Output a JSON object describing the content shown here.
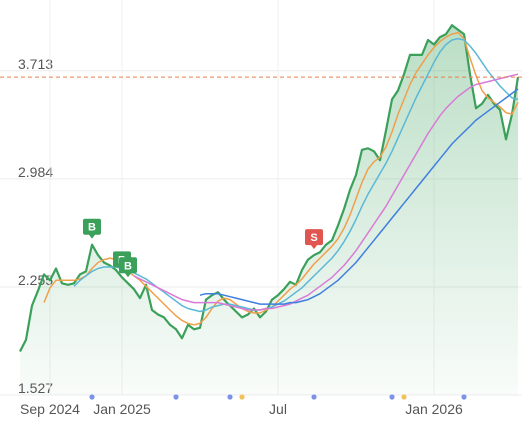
{
  "chart_data": {
    "type": "line",
    "categories": [
      null,
      null,
      null,
      null,
      null,
      "Sep 2024",
      null,
      null,
      null,
      null,
      null,
      null,
      null,
      null,
      null,
      null,
      null,
      "Jan 2025",
      null,
      null,
      null,
      null,
      null,
      null,
      null,
      null,
      null,
      null,
      null,
      null,
      null,
      null,
      null,
      null,
      null,
      null,
      null,
      null,
      null,
      null,
      null,
      null,
      null,
      "Jul",
      null,
      null,
      null,
      null,
      null,
      null,
      null,
      null,
      null,
      null,
      null,
      null,
      null,
      null,
      null,
      null,
      null,
      null,
      null,
      null,
      null,
      null,
      null,
      null,
      null,
      "Jan 2026",
      null,
      null,
      null,
      null,
      null,
      null,
      null,
      null,
      null,
      null,
      null,
      null,
      null,
      null
    ],
    "series": [
      {
        "color": "#3aa05a",
        "fill": true,
        "values": [
          1.82,
          1.9,
          2.13,
          2.23,
          2.34,
          2.3,
          2.38,
          2.28,
          2.27,
          2.28,
          2.34,
          2.36,
          2.54,
          2.47,
          2.42,
          2.4,
          2.37,
          2.32,
          2.28,
          2.24,
          2.18,
          2.27,
          2.1,
          2.07,
          2.05,
          2.0,
          1.97,
          1.91,
          2.0,
          1.97,
          1.98,
          2.17,
          2.2,
          2.22,
          2.17,
          2.13,
          2.09,
          2.05,
          2.07,
          2.11,
          2.05,
          2.09,
          2.17,
          2.2,
          2.24,
          2.29,
          2.27,
          2.37,
          2.44,
          2.47,
          2.49,
          2.54,
          2.57,
          2.67,
          2.78,
          2.91,
          3.01,
          3.18,
          3.19,
          3.17,
          3.11,
          3.31,
          3.52,
          3.58,
          3.69,
          3.82,
          3.82,
          3.82,
          3.92,
          3.89,
          3.94,
          3.96,
          4.02,
          3.99,
          3.96,
          3.69,
          3.46,
          3.49,
          3.55,
          3.49,
          3.45,
          3.25,
          3.42,
          3.67
        ]
      },
      {
        "color": "#f0a04b",
        "values": [
          null,
          null,
          null,
          null,
          2.15,
          2.25,
          2.3,
          2.3,
          2.3,
          2.3,
          2.31,
          2.33,
          2.38,
          2.42,
          2.44,
          2.45,
          2.44,
          2.4,
          2.36,
          2.33,
          2.3,
          2.26,
          2.22,
          2.18,
          2.14,
          2.1,
          2.06,
          2.03,
          2.01,
          2.0,
          2.01,
          2.05,
          2.11,
          2.16,
          2.18,
          2.17,
          2.14,
          2.11,
          2.09,
          2.08,
          2.08,
          2.1,
          2.12,
          2.16,
          2.2,
          2.24,
          2.27,
          2.31,
          2.36,
          2.41,
          2.45,
          2.49,
          2.53,
          2.58,
          2.65,
          2.74,
          2.85,
          2.96,
          3.05,
          3.1,
          3.13,
          3.2,
          3.3,
          3.42,
          3.52,
          3.62,
          3.7,
          3.76,
          3.82,
          3.87,
          3.91,
          3.94,
          3.96,
          3.97,
          3.93,
          3.8,
          3.68,
          3.58,
          3.53,
          3.5,
          3.47,
          3.43,
          3.42,
          3.5
        ]
      },
      {
        "color": "#5bb8d6",
        "values": [
          null,
          null,
          null,
          null,
          null,
          null,
          null,
          null,
          null,
          2.26,
          2.3,
          2.33,
          2.36,
          2.38,
          2.39,
          2.39,
          2.39,
          2.38,
          2.37,
          2.35,
          2.33,
          2.31,
          2.28,
          2.25,
          2.22,
          2.19,
          2.16,
          2.13,
          2.11,
          2.1,
          2.09,
          2.1,
          2.12,
          2.13,
          2.14,
          2.14,
          2.13,
          2.12,
          2.11,
          2.1,
          2.1,
          2.11,
          2.12,
          2.14,
          2.16,
          2.19,
          2.22,
          2.25,
          2.29,
          2.33,
          2.37,
          2.41,
          2.45,
          2.5,
          2.56,
          2.63,
          2.71,
          2.8,
          2.88,
          2.95,
          3.02,
          3.09,
          3.17,
          3.26,
          3.35,
          3.44,
          3.53,
          3.61,
          3.69,
          3.77,
          3.84,
          3.89,
          3.92,
          3.93,
          3.92,
          3.88,
          3.83,
          3.77,
          3.71,
          3.66,
          3.61,
          3.57,
          3.53,
          3.52
        ]
      },
      {
        "color": "#d97bd6",
        "values": [
          null,
          null,
          null,
          null,
          null,
          null,
          null,
          null,
          null,
          null,
          null,
          null,
          null,
          null,
          null,
          null,
          null,
          null,
          null,
          2.33,
          2.31,
          2.29,
          2.27,
          2.25,
          2.23,
          2.21,
          2.19,
          2.17,
          2.16,
          2.15,
          2.15,
          2.15,
          2.15,
          2.15,
          2.14,
          2.13,
          2.12,
          2.11,
          2.1,
          2.1,
          2.1,
          2.11,
          2.11,
          2.12,
          2.13,
          2.14,
          2.16,
          2.18,
          2.2,
          2.23,
          2.26,
          2.29,
          2.32,
          2.36,
          2.4,
          2.45,
          2.5,
          2.56,
          2.62,
          2.68,
          2.74,
          2.8,
          2.87,
          2.94,
          3.01,
          3.08,
          3.15,
          3.22,
          3.29,
          3.35,
          3.41,
          3.46,
          3.5,
          3.54,
          3.57,
          3.6,
          3.62,
          3.63,
          3.64,
          3.65,
          3.66,
          3.67,
          3.68,
          3.69
        ]
      },
      {
        "color": "#3f7fe0",
        "values": [
          null,
          null,
          null,
          null,
          null,
          null,
          null,
          null,
          null,
          null,
          null,
          null,
          null,
          null,
          null,
          null,
          null,
          null,
          null,
          null,
          null,
          null,
          null,
          null,
          null,
          null,
          null,
          null,
          null,
          null,
          2.2,
          2.21,
          2.21,
          2.21,
          2.2,
          2.19,
          2.18,
          2.17,
          2.16,
          2.15,
          2.14,
          2.14,
          2.14,
          2.14,
          2.14,
          2.15,
          2.15,
          2.16,
          2.17,
          2.19,
          2.21,
          2.24,
          2.27,
          2.3,
          2.34,
          2.38,
          2.42,
          2.47,
          2.52,
          2.57,
          2.62,
          2.67,
          2.72,
          2.77,
          2.82,
          2.87,
          2.92,
          2.97,
          3.02,
          3.07,
          3.12,
          3.17,
          3.22,
          3.26,
          3.3,
          3.34,
          3.38,
          3.41,
          3.44,
          3.47,
          3.5,
          3.53,
          3.56,
          3.59
        ]
      }
    ],
    "ylim": [
      1.527,
      4.19
    ],
    "yticks": [
      1.527,
      2.255,
      2.984,
      3.713
    ],
    "grid": true,
    "reference_line": {
      "value": 3.67,
      "color": "#e8804a"
    },
    "signals": [
      {
        "label": "B",
        "at": 12,
        "color": "#3aa05a"
      },
      {
        "label": "B",
        "at": 17,
        "color": "#3aa05a"
      },
      {
        "label": "B",
        "at": 18,
        "color": "#3aa05a"
      },
      {
        "label": "S",
        "at": 49,
        "color": "#e0554f"
      }
    ],
    "events": [
      {
        "at": 12,
        "color": "#7b93e6"
      },
      {
        "at": 26,
        "color": "#7b93e6"
      },
      {
        "at": 35,
        "color": "#7b93e6"
      },
      {
        "at": 37,
        "color": "#f2c25a"
      },
      {
        "at": 49,
        "color": "#7b93e6"
      },
      {
        "at": 62,
        "color": "#7b93e6"
      },
      {
        "at": 64,
        "color": "#f2c25a"
      },
      {
        "at": 74,
        "color": "#7b93e6"
      }
    ]
  }
}
